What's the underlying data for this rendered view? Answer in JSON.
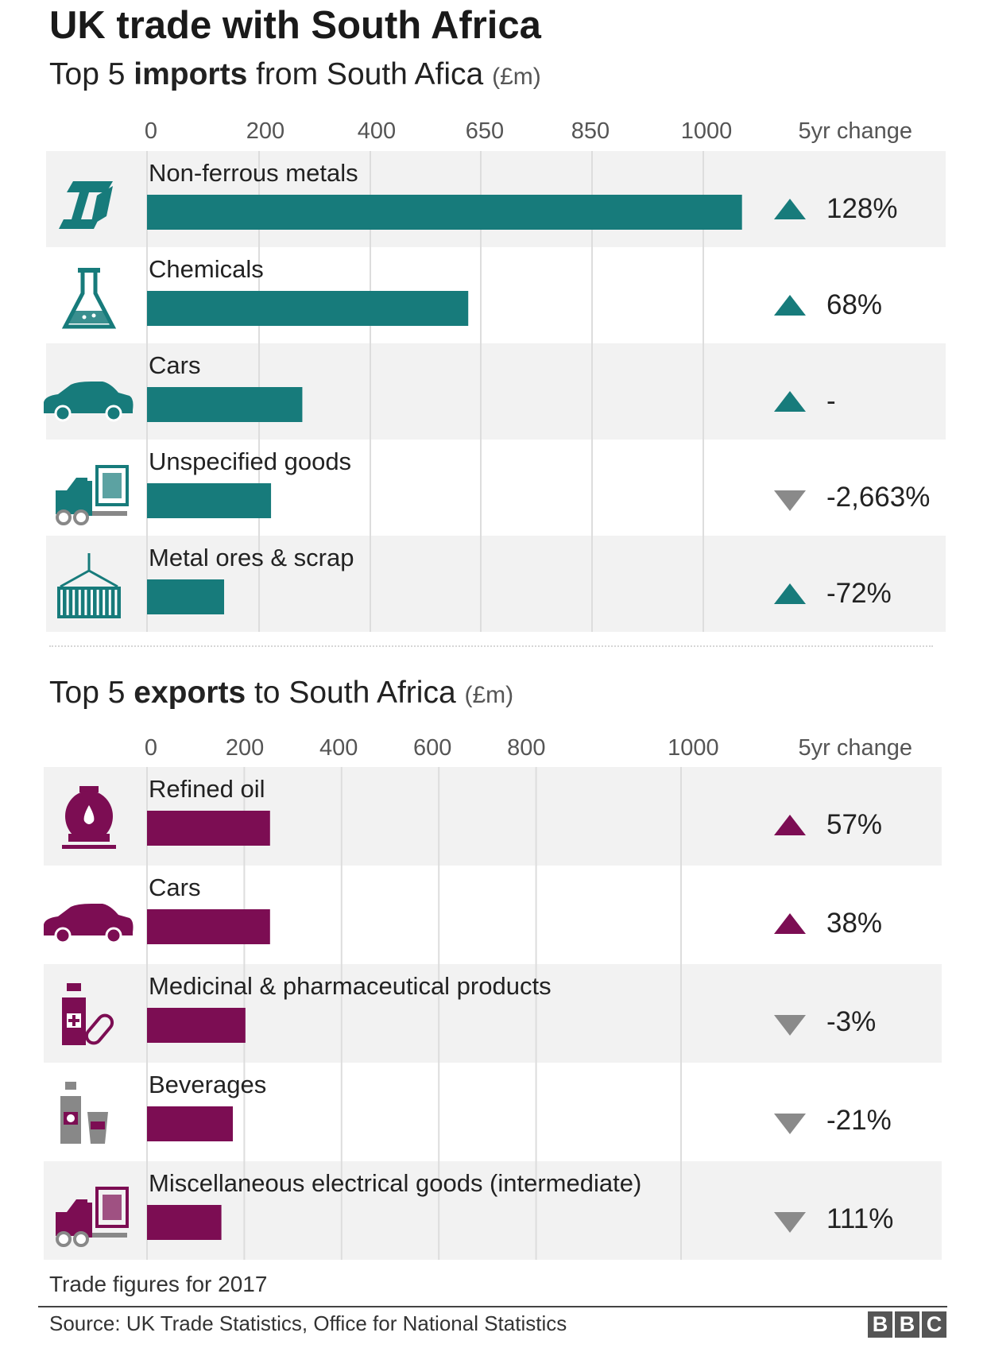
{
  "title": "UK trade with South Africa",
  "imports": {
    "title_pre": "Top 5 ",
    "title_bold": "imports",
    "title_post": " from South Afica",
    "unit": "(£m)"
  },
  "exports": {
    "title_pre": "Top 5 ",
    "title_bold": "exports",
    "title_post": " to South Africa",
    "unit": "(£m)"
  },
  "change_header": "5yr change",
  "footnote": "Trade figures for 2017",
  "source": "Source: UK Trade Statistics, Office for National Statistics",
  "logo_letters": [
    "B",
    "B",
    "C"
  ],
  "colors": {
    "imports": "#177b7b",
    "exports": "#7c0d53",
    "down": "#8a8a8a",
    "row_bg": "#f2f2f2",
    "grid": "#dddddd"
  },
  "chart_data": [
    {
      "type": "bar",
      "orientation": "horizontal",
      "title": "Top 5 imports from South Afica (£m)",
      "x_tick_labels": [
        "0",
        "200",
        "400",
        "650",
        "850",
        "1000"
      ],
      "xlim": [
        0,
        1050
      ],
      "grid": true,
      "categories": [
        "Non-ferrous metals",
        "Chemicals",
        "Cars",
        "Unspecified goods",
        "Metal ores & scrap"
      ],
      "icons": [
        "steel-beam-icon",
        "flask-icon",
        "car-icon",
        "forklift-icon",
        "container-icon"
      ],
      "values": [
        1065,
        575,
        278,
        222,
        138
      ],
      "change_direction": [
        "up",
        "up",
        "up",
        "down",
        "up"
      ],
      "change_labels": [
        "128%",
        "68%",
        "-",
        "-2,663%",
        "-72%"
      ]
    },
    {
      "type": "bar",
      "orientation": "horizontal",
      "title": "Top 5 exports to South Africa (£m)",
      "x_tick_labels": [
        "0",
        "200",
        "400",
        "600",
        "800",
        "1000"
      ],
      "x_ticks": [
        0,
        200,
        400,
        600,
        800,
        1000
      ],
      "xlim": [
        0,
        1000
      ],
      "grid": true,
      "categories": [
        "Refined oil",
        "Cars",
        "Medicinal & pharmaceutical products",
        "Beverages",
        "Miscellaneous electrical goods (intermediate)"
      ],
      "icons": [
        "oil-tank-icon",
        "car-icon",
        "medicine-icon",
        "beverages-icon",
        "forklift-icon"
      ],
      "values": [
        215,
        215,
        172,
        150,
        130
      ],
      "change_direction": [
        "up",
        "up",
        "down",
        "down",
        "down"
      ],
      "change_labels": [
        "57%",
        "38%",
        "-3%",
        "-21%",
        "111%"
      ]
    }
  ]
}
